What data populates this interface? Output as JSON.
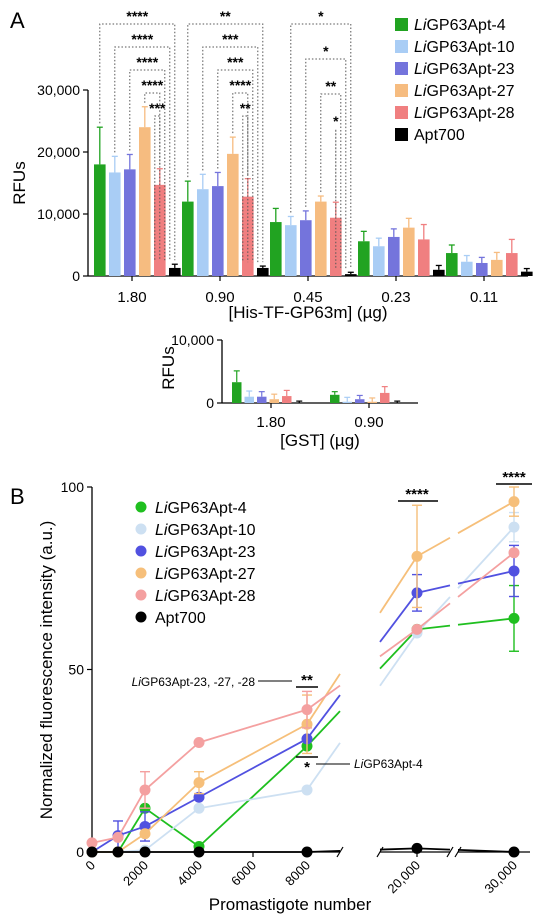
{
  "panels": {
    "a": "A",
    "b": "B"
  },
  "chart_data": [
    {
      "type": "bar",
      "panel": "A",
      "xlabel": "[His-TF-GP63m] (µg)",
      "ylabel": "RFUs",
      "ylim": [
        0,
        30000
      ],
      "yticks": [
        "0",
        "10,000",
        "20,000",
        "30,000"
      ],
      "categories": [
        "1.80",
        "0.90",
        "0.45",
        "0.23",
        "0.11"
      ],
      "legend_position": "top-right",
      "series": [
        {
          "name": "LiGP63Apt-4",
          "name_italic": "Li",
          "name_rest": "GP63Apt-4",
          "color": "#21a321",
          "values": [
            18000,
            12000,
            8700,
            5600,
            3700
          ],
          "errors": [
            6000,
            3300,
            2200,
            1600,
            1300
          ]
        },
        {
          "name": "LiGP63Apt-10",
          "name_italic": "Li",
          "name_rest": "GP63Apt-10",
          "color": "#a9cdf5",
          "values": [
            16700,
            14000,
            8200,
            4800,
            2300
          ],
          "errors": [
            2600,
            2400,
            1400,
            1300,
            1000
          ]
        },
        {
          "name": "LiGP63Apt-23",
          "name_italic": "Li",
          "name_rest": "GP63Apt-23",
          "color": "#7474dc",
          "values": [
            17200,
            14500,
            9000,
            6300,
            2100
          ],
          "errors": [
            2400,
            2200,
            1500,
            1300,
            900
          ]
        },
        {
          "name": "LiGP63Apt-27",
          "name_italic": "Li",
          "name_rest": "GP63Apt-27",
          "color": "#f6bc80",
          "values": [
            24000,
            19700,
            12000,
            7800,
            2600
          ],
          "errors": [
            3300,
            2700,
            900,
            1500,
            1200
          ]
        },
        {
          "name": "LiGP63Apt-28",
          "name_italic": "Li",
          "name_rest": "GP63Apt-28",
          "color": "#f07f80",
          "values": [
            14700,
            12800,
            9400,
            5900,
            3700
          ],
          "errors": [
            2600,
            2900,
            2500,
            2400,
            2200
          ]
        },
        {
          "name": "Apt700",
          "name_italic": "",
          "name_rest": "Apt700",
          "color": "#000000",
          "values": [
            1300,
            1300,
            300,
            1000,
            700
          ],
          "errors": [
            600,
            300,
            300,
            700,
            500
          ]
        }
      ],
      "significance": [
        {
          "category": "1.80",
          "labels": [
            "****",
            "****",
            "****",
            "****",
            "***"
          ]
        },
        {
          "category": "0.90",
          "labels": [
            "**",
            "***",
            "***",
            "****",
            "**"
          ]
        },
        {
          "category": "0.45",
          "labels": [
            "*",
            "*",
            "**",
            "*"
          ]
        }
      ]
    },
    {
      "type": "bar",
      "panel": "A (inset)",
      "xlabel": "[GST] (µg)",
      "ylabel": "RFUs",
      "ylim": [
        0,
        10000
      ],
      "yticks": [
        "0",
        "10,000"
      ],
      "categories": [
        "1.80",
        "0.90"
      ],
      "series": [
        {
          "name": "LiGP63Apt-4",
          "color": "#21a321",
          "values": [
            3300,
            1300
          ],
          "errors": [
            1800,
            500
          ]
        },
        {
          "name": "LiGP63Apt-10",
          "color": "#a9cdf5",
          "values": [
            1000,
            200
          ],
          "errors": [
            900,
            700
          ]
        },
        {
          "name": "LiGP63Apt-23",
          "color": "#7474dc",
          "values": [
            1000,
            600
          ],
          "errors": [
            800,
            600
          ]
        },
        {
          "name": "LiGP63Apt-27",
          "color": "#f6bc80",
          "values": [
            600,
            200
          ],
          "errors": [
            800,
            600
          ]
        },
        {
          "name": "LiGP63Apt-28",
          "color": "#f07f80",
          "values": [
            1100,
            1600
          ],
          "errors": [
            900,
            1000
          ]
        },
        {
          "name": "Apt700",
          "color": "#000000",
          "values": [
            0,
            0
          ],
          "errors": [
            300,
            300
          ]
        }
      ]
    },
    {
      "type": "line",
      "panel": "B",
      "xlabel": "Promastigote number",
      "ylabel": "Normalized fluorescence intensity (a.u.)",
      "ylim": [
        0,
        100
      ],
      "yticks": [
        "0",
        "50",
        "100"
      ],
      "x": [
        "0",
        "1000",
        "2000",
        "4000",
        "8000",
        "20,000",
        "30,000"
      ],
      "xticks": [
        "0",
        "2000",
        "4000",
        "6000",
        "8000",
        "20,000",
        "30,000"
      ],
      "legend_position": "top-left",
      "series": [
        {
          "name": "LiGP63Apt-4",
          "name_italic": "Li",
          "name_rest": "GP63Apt-4",
          "color": "#1fbf1f",
          "values": [
            0,
            0,
            12,
            1.5,
            29,
            61,
            64
          ],
          "errors": [
            0,
            0,
            0,
            0,
            0,
            0,
            9
          ]
        },
        {
          "name": "LiGP63Apt-10",
          "name_italic": "Li",
          "name_rest": "GP63Apt-10",
          "color": "#cde0f2",
          "values": [
            0,
            0,
            0.5,
            12,
            17,
            60,
            89
          ],
          "errors": [
            0,
            0,
            0,
            0,
            0,
            0,
            4
          ]
        },
        {
          "name": "LiGP63Apt-23",
          "name_italic": "Li",
          "name_rest": "GP63Apt-23",
          "color": "#5151e0",
          "values": [
            0,
            4.5,
            7,
            15,
            31,
            71,
            77
          ],
          "errors": [
            0,
            4,
            4,
            0,
            0,
            5,
            7
          ]
        },
        {
          "name": "LiGP63Apt-27",
          "name_italic": "Li",
          "name_rest": "GP63Apt-27",
          "color": "#f6bf7a",
          "values": [
            0,
            0,
            5,
            19,
            35,
            81,
            96
          ],
          "errors": [
            0,
            0,
            0,
            3,
            8,
            14,
            4
          ]
        },
        {
          "name": "LiGP63Apt-28",
          "name_italic": "Li",
          "name_rest": "GP63Apt-28",
          "color": "#f4a0a0",
          "values": [
            2.5,
            4,
            17,
            30,
            39,
            61,
            82
          ],
          "errors": [
            0,
            0,
            5,
            0,
            5,
            0,
            0
          ]
        },
        {
          "name": "Apt700",
          "name_italic": "",
          "name_rest": "Apt700",
          "color": "#000000",
          "values": [
            0,
            0,
            0,
            0,
            0,
            1,
            0
          ],
          "errors": [
            0,
            0,
            0,
            0,
            0,
            0,
            0
          ]
        }
      ],
      "significance": [
        {
          "x": "8000",
          "label": "**",
          "note_italic": "Li",
          "note": "GP63Apt-23, -27, -28"
        },
        {
          "x": "8000",
          "label": "*",
          "note_italic": "Li",
          "note": "GP63Apt-4"
        },
        {
          "x": "20,000",
          "label": "****"
        },
        {
          "x": "30,000",
          "label": "****"
        }
      ]
    }
  ]
}
